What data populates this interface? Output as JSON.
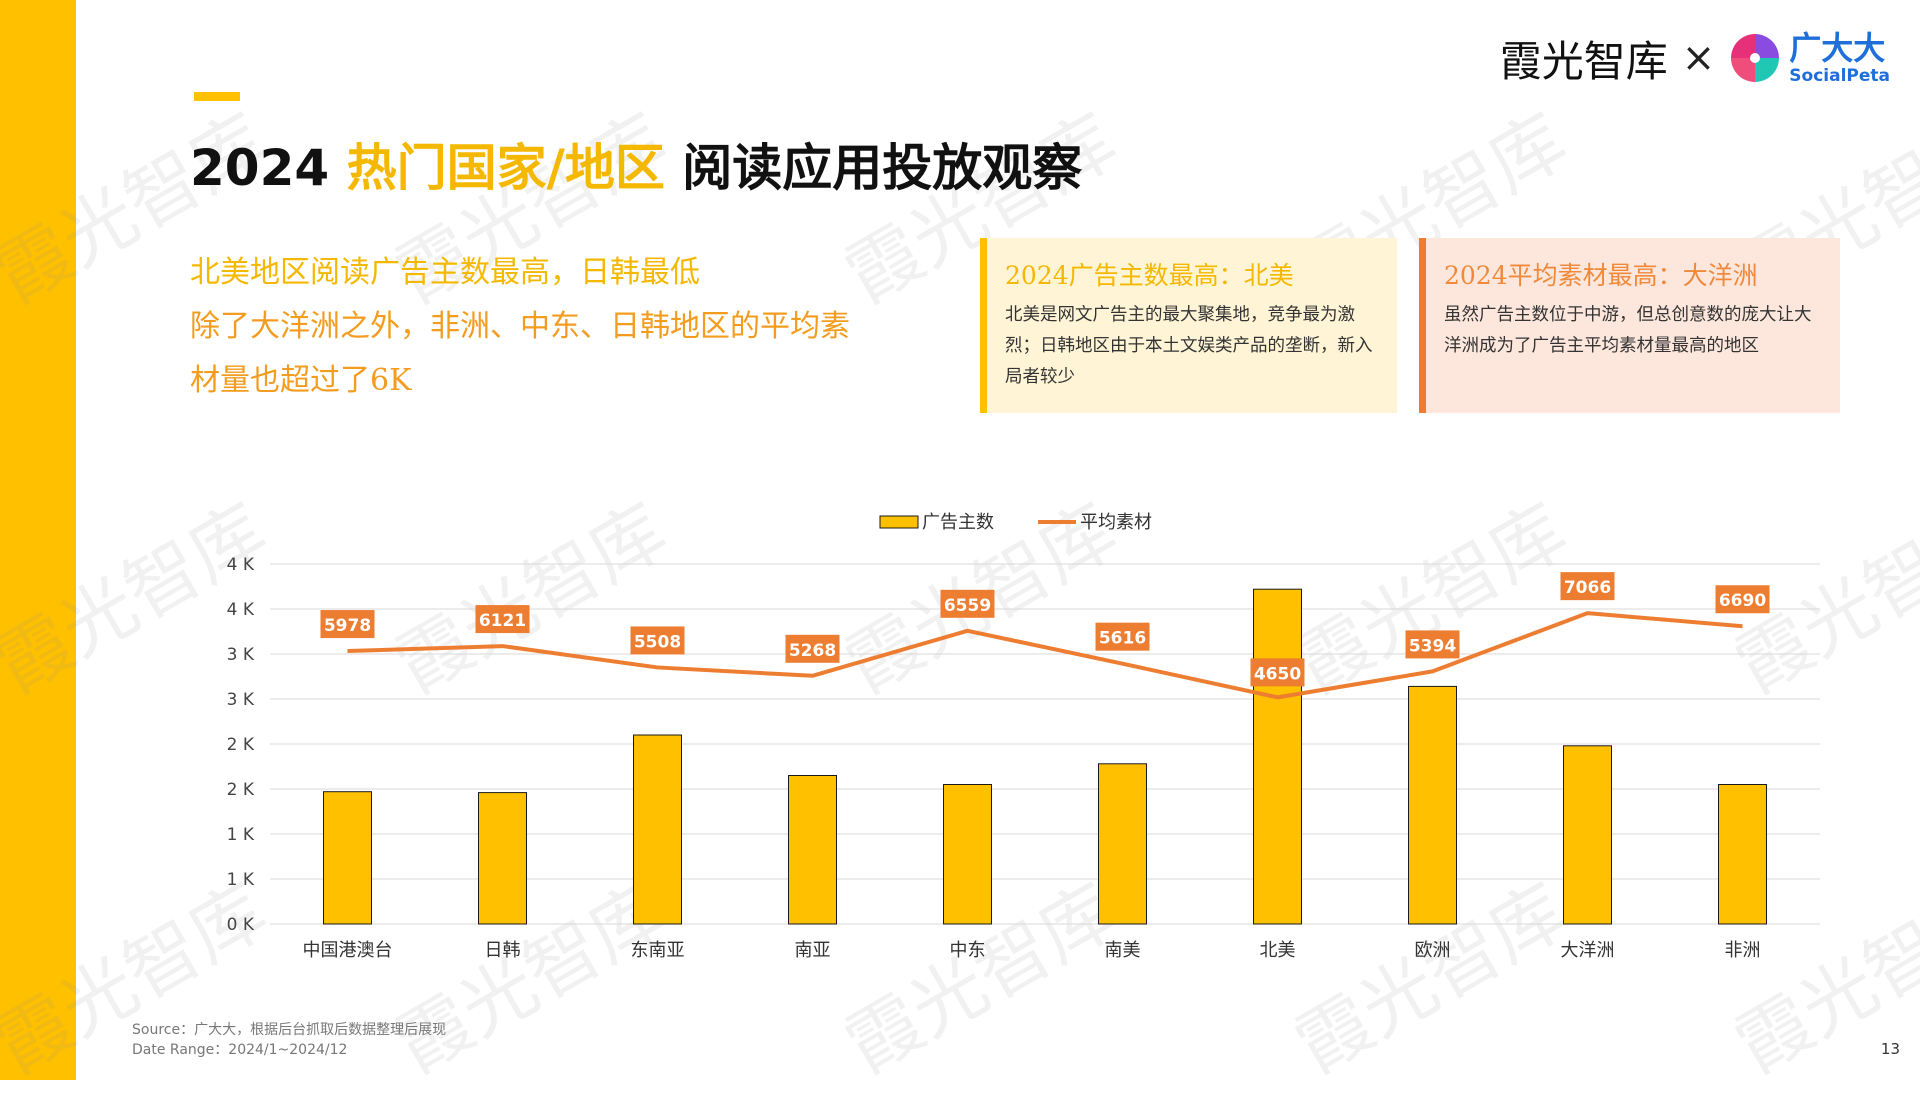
{
  "header": {
    "title_year": "2024",
    "title_highlight": "热门国家/地区",
    "title_rest": "阅读应用投放观察"
  },
  "brand": {
    "left_name": "霞光智库",
    "separator": "×",
    "partner_cn": "广大大",
    "partner_en": "SocialPeta"
  },
  "summary": {
    "line1": "北美地区阅读广告主数最高，日韩最低",
    "line2": "除了大洋洲之外，非洲、中东、日韩地区的平均素",
    "line3": "材量也超过了6K"
  },
  "cards": [
    {
      "title": "2024广告主数最高：北美",
      "body": "北美是网文广告主的最大聚集地，竞争最为激烈；日韩地区由于本土文娱类产品的垄断，新入局者较少"
    },
    {
      "title": "2024平均素材最高：大洋洲",
      "body": "虽然广告主数位于中游，但总创意数的庞大让大洋洲成为了广告主平均素材量最高的地区"
    }
  ],
  "chart_data": {
    "type": "bar",
    "title": "",
    "categories": [
      "中国港澳台",
      "日韩",
      "东南亚",
      "南亚",
      "中东",
      "南美",
      "北美",
      "欧洲",
      "大洋洲",
      "非洲"
    ],
    "series": [
      {
        "name": "广告主数",
        "type": "bar",
        "values": [
          1470,
          1460,
          2100,
          1650,
          1550,
          1780,
          3720,
          2640,
          1980,
          1550
        ]
      },
      {
        "name": "平均素材",
        "type": "line",
        "values": [
          5978,
          6121,
          5508,
          5268,
          6559,
          5616,
          4650,
          5394,
          7066,
          6690
        ]
      }
    ],
    "y_ticks": [
      "0 K",
      "1 K",
      "1 K",
      "2 K",
      "2 K",
      "3 K",
      "3 K",
      "4 K",
      "4 K"
    ],
    "ylim": [
      0,
      4000
    ],
    "legend": "top-center",
    "grid": true,
    "colors": {
      "bar": "#ffc000",
      "line": "#ed7d31",
      "label_bg": "#ed7d31"
    }
  },
  "footer": {
    "source": "Source：广大大，根据后台抓取后数据整理后展现",
    "date_range": "Date Range：2024/1~2024/12",
    "page": "13"
  },
  "watermark": "霞光智库"
}
